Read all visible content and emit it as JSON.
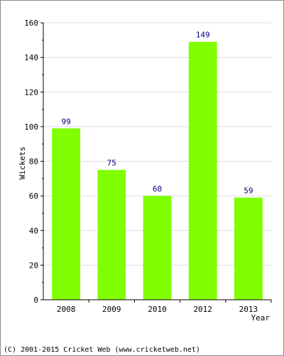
{
  "chart_data": {
    "type": "bar",
    "categories": [
      "2008",
      "2009",
      "2010",
      "2012",
      "2013"
    ],
    "values": [
      99,
      75,
      60,
      149,
      59
    ],
    "xlabel": "Year",
    "ylabel": "Wickets",
    "ylim": [
      0,
      160
    ],
    "yticks": [
      0,
      20,
      40,
      60,
      80,
      100,
      120,
      140,
      160
    ],
    "grid": true,
    "bar_color": "#80ff00",
    "data_label_color": "#000080"
  },
  "footer": {
    "copyright": "(C) 2001-2015 Cricket Web (www.cricketweb.net)"
  }
}
